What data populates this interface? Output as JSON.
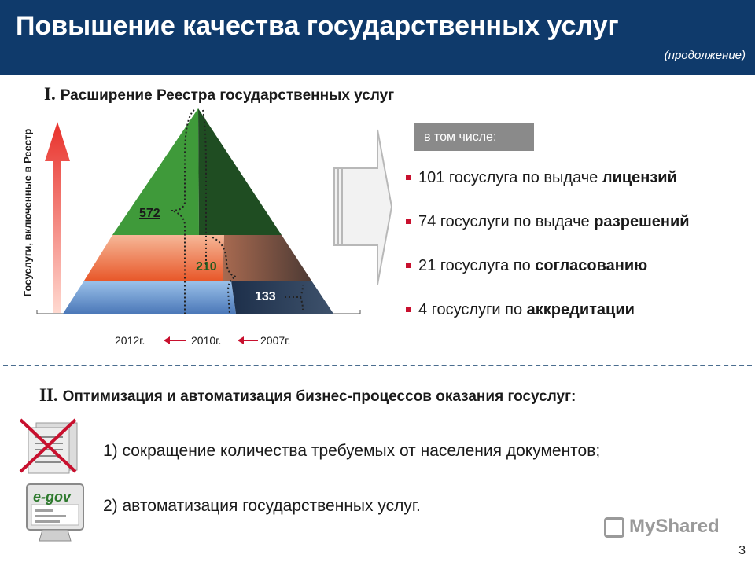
{
  "header": {
    "title": "Повышение качества государственных услуг",
    "subtitle": "(продолжение)"
  },
  "section1": {
    "numeral": "I.",
    "title": "Расширение Реестра государственных услуг",
    "y_axis_label": "Госуслуги, включенные в Реестр",
    "pyramid": {
      "values": {
        "y2012": "572",
        "y2010": "210",
        "y2007": "133"
      },
      "years": {
        "y2012": "2012г.",
        "y2010": "2010г.",
        "y2007": "2007г."
      }
    },
    "badge": "в том числе:",
    "items": [
      {
        "prefix": "101 госуслуга по выдаче ",
        "bold": "лицензий"
      },
      {
        "prefix": "74 госуслуги по выдаче ",
        "bold": "разрешений"
      },
      {
        "prefix": "21 госуслуга по ",
        "bold": "согласованию"
      },
      {
        "prefix": "4 госуслуги по ",
        "bold": "аккредитации"
      }
    ]
  },
  "section2": {
    "numeral": "II.",
    "title": "Оптимизация и автоматизация бизнес-процессов оказания госуслуг:",
    "step1": "1) сокращение количества требуемых от населения документов;",
    "step2": "2) автоматизация государственных услуг.",
    "egov_icon_text": "e-gov"
  },
  "watermark": "MyShared",
  "page_number": "3",
  "colors": {
    "header_bg": "#0f3a6b",
    "green_dark": "#1e5a1e",
    "green": "#3f9a3a",
    "salmon": "#f4a07a",
    "blue": "#8ab4e0",
    "accent_red": "#c8102e"
  },
  "icons": [
    "up-arrow-icon",
    "double-arrow-icon",
    "red-arrow-icon",
    "documents-crossed-icon",
    "egov-monitor-icon"
  ]
}
